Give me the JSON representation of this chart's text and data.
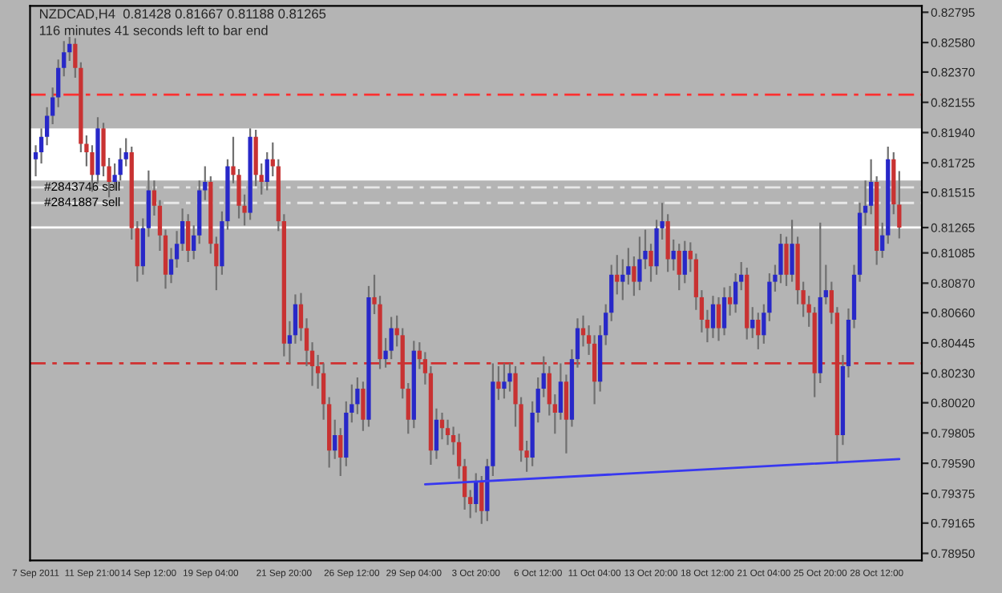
{
  "chart_data": {
    "type": "candlestick",
    "title": "NZDCAD,H4  0.81428 0.81667 0.81188 0.81265",
    "subtitle": "116 minutes 41 seconds left to bar end",
    "categories": [
      "7 Sep 2011",
      null,
      null,
      null,
      null,
      null,
      null,
      null,
      null,
      null,
      "11 Sep 21:00",
      null,
      null,
      null,
      null,
      null,
      null,
      null,
      null,
      null,
      "14 Sep 12:00",
      null,
      null,
      null,
      null,
      null,
      null,
      null,
      null,
      null,
      null,
      "19 Sep 04:00",
      null,
      null,
      null,
      null,
      null,
      null,
      null,
      null,
      null,
      null,
      null,
      null,
      "21 Sep 20:00",
      null,
      null,
      null,
      null,
      null,
      null,
      null,
      null,
      null,
      null,
      null,
      "26 Sep 12:00",
      null,
      null,
      null,
      null,
      null,
      null,
      null,
      null,
      null,
      null,
      "29 Sep 04:00",
      null,
      null,
      null,
      null,
      null,
      null,
      null,
      null,
      null,
      null,
      "3 Oct 20:00",
      null,
      null,
      null,
      null,
      null,
      null,
      null,
      null,
      null,
      null,
      "6 Oct 12:00",
      null,
      null,
      null,
      null,
      null,
      null,
      null,
      null,
      null,
      "11 Oct 04:00",
      null,
      null,
      null,
      null,
      null,
      null,
      null,
      null,
      null,
      "13 Oct 20:00",
      null,
      null,
      null,
      null,
      null,
      null,
      null,
      null,
      null,
      "18 Oct 12:00",
      null,
      null,
      null,
      null,
      null,
      null,
      null,
      null,
      null,
      "21 Oct 04:00",
      null,
      null,
      null,
      null,
      null,
      null,
      null,
      null,
      null,
      "25 Oct 20:00",
      null,
      null,
      null,
      null,
      null,
      null,
      null,
      null,
      null,
      "28 Oct 12:00",
      null,
      null,
      null,
      null
    ],
    "ohlc": [
      [
        0.8175,
        0.8185,
        0.8163,
        0.818
      ],
      [
        0.818,
        0.8197,
        0.8172,
        0.8191
      ],
      [
        0.8191,
        0.8212,
        0.8185,
        0.8206
      ],
      [
        0.8206,
        0.8226,
        0.82,
        0.8219
      ],
      [
        0.8219,
        0.8246,
        0.8212,
        0.824
      ],
      [
        0.824,
        0.8259,
        0.8234,
        0.8251
      ],
      [
        0.8251,
        0.8262,
        0.8245,
        0.8257
      ],
      [
        0.8257,
        0.8261,
        0.8233,
        0.824
      ],
      [
        0.824,
        0.8244,
        0.818,
        0.8186
      ],
      [
        0.8186,
        0.8192,
        0.817,
        0.818
      ],
      [
        0.818,
        0.8185,
        0.8152,
        0.8164
      ],
      [
        0.8164,
        0.8205,
        0.8158,
        0.8197
      ],
      [
        0.8197,
        0.8201,
        0.8163,
        0.817
      ],
      [
        0.817,
        0.8176,
        0.8148,
        0.8159
      ],
      [
        0.8159,
        0.8172,
        0.8153,
        0.8164
      ],
      [
        0.8164,
        0.8183,
        0.816,
        0.8175
      ],
      [
        0.8175,
        0.819,
        0.817,
        0.818
      ],
      [
        0.818,
        0.8184,
        0.8118,
        0.8126
      ],
      [
        0.8126,
        0.8131,
        0.8088,
        0.8099
      ],
      [
        0.8099,
        0.8133,
        0.8093,
        0.8126
      ],
      [
        0.8126,
        0.8167,
        0.812,
        0.8153
      ],
      [
        0.8153,
        0.816,
        0.8135,
        0.8142
      ],
      [
        0.8142,
        0.8146,
        0.811,
        0.8121
      ],
      [
        0.8121,
        0.8125,
        0.8083,
        0.8093
      ],
      [
        0.8093,
        0.8112,
        0.8087,
        0.8104
      ],
      [
        0.8104,
        0.8124,
        0.8098,
        0.8115
      ],
      [
        0.8115,
        0.814,
        0.811,
        0.8131
      ],
      [
        0.8131,
        0.8136,
        0.8102,
        0.811
      ],
      [
        0.811,
        0.8128,
        0.8104,
        0.8121
      ],
      [
        0.8121,
        0.816,
        0.8115,
        0.8153
      ],
      [
        0.8153,
        0.817,
        0.8146,
        0.8159
      ],
      [
        0.8159,
        0.8163,
        0.8108,
        0.8115
      ],
      [
        0.8115,
        0.812,
        0.8082,
        0.8099
      ],
      [
        0.8099,
        0.8138,
        0.8093,
        0.8131
      ],
      [
        0.8131,
        0.8175,
        0.8125,
        0.817
      ],
      [
        0.817,
        0.8191,
        0.8158,
        0.8164
      ],
      [
        0.8164,
        0.8168,
        0.8133,
        0.8142
      ],
      [
        0.8142,
        0.815,
        0.8128,
        0.8137
      ],
      [
        0.8137,
        0.8197,
        0.8132,
        0.8191
      ],
      [
        0.8191,
        0.8196,
        0.8156,
        0.8164
      ],
      [
        0.8164,
        0.8172,
        0.815,
        0.8159
      ],
      [
        0.8159,
        0.818,
        0.8153,
        0.8175
      ],
      [
        0.8175,
        0.8187,
        0.8163,
        0.817
      ],
      [
        0.817,
        0.8175,
        0.8124,
        0.8131
      ],
      [
        0.8131,
        0.8136,
        0.8035,
        0.8044
      ],
      [
        0.8044,
        0.806,
        0.803,
        0.805
      ],
      [
        0.805,
        0.8079,
        0.8044,
        0.8072
      ],
      [
        0.8072,
        0.808,
        0.8046,
        0.8055
      ],
      [
        0.8055,
        0.8062,
        0.8028,
        0.8039
      ],
      [
        0.8039,
        0.8045,
        0.8014,
        0.8028
      ],
      [
        0.8028,
        0.8036,
        0.8012,
        0.8023
      ],
      [
        0.8023,
        0.803,
        0.799,
        0.8001
      ],
      [
        0.8001,
        0.8006,
        0.7956,
        0.7968
      ],
      [
        0.7968,
        0.799,
        0.7962,
        0.7979
      ],
      [
        0.7979,
        0.7984,
        0.795,
        0.7963
      ],
      [
        0.7963,
        0.8003,
        0.7957,
        0.7995
      ],
      [
        0.7995,
        0.8015,
        0.7988,
        0.8001
      ],
      [
        0.8001,
        0.802,
        0.7994,
        0.8012
      ],
      [
        0.8012,
        0.8017,
        0.7982,
        0.799
      ],
      [
        0.799,
        0.8085,
        0.7985,
        0.8077
      ],
      [
        0.8077,
        0.8093,
        0.8065,
        0.8072
      ],
      [
        0.8072,
        0.8078,
        0.8026,
        0.8033
      ],
      [
        0.8033,
        0.8048,
        0.8027,
        0.8039
      ],
      [
        0.8039,
        0.8063,
        0.8033,
        0.8055
      ],
      [
        0.8055,
        0.8064,
        0.8042,
        0.805
      ],
      [
        0.805,
        0.8055,
        0.8005,
        0.8012
      ],
      [
        0.8012,
        0.8016,
        0.798,
        0.799
      ],
      [
        0.799,
        0.8046,
        0.7984,
        0.8039
      ],
      [
        0.8039,
        0.8045,
        0.8026,
        0.8033
      ],
      [
        0.8033,
        0.8038,
        0.8015,
        0.8023
      ],
      [
        0.8023,
        0.8028,
        0.7958,
        0.7968
      ],
      [
        0.7968,
        0.7998,
        0.7962,
        0.799
      ],
      [
        0.799,
        0.7995,
        0.7976,
        0.7984
      ],
      [
        0.7984,
        0.799,
        0.7972,
        0.7979
      ],
      [
        0.7979,
        0.7985,
        0.7965,
        0.7974
      ],
      [
        0.7974,
        0.798,
        0.7948,
        0.7957
      ],
      [
        0.7957,
        0.7962,
        0.7926,
        0.7935
      ],
      [
        0.7935,
        0.794,
        0.792,
        0.793
      ],
      [
        0.793,
        0.7952,
        0.7924,
        0.7946
      ],
      [
        0.7946,
        0.795,
        0.7916,
        0.7925
      ],
      [
        0.7925,
        0.7962,
        0.7918,
        0.7957
      ],
      [
        0.7957,
        0.803,
        0.795,
        0.8017
      ],
      [
        0.8017,
        0.8028,
        0.8004,
        0.8012
      ],
      [
        0.8012,
        0.803,
        0.8005,
        0.8017
      ],
      [
        0.8017,
        0.803,
        0.801,
        0.8023
      ],
      [
        0.8023,
        0.8028,
        0.7985,
        0.8001
      ],
      [
        0.8001,
        0.8006,
        0.796,
        0.7968
      ],
      [
        0.7968,
        0.7975,
        0.7953,
        0.7963
      ],
      [
        0.7963,
        0.8003,
        0.7957,
        0.7995
      ],
      [
        0.7995,
        0.802,
        0.7988,
        0.8012
      ],
      [
        0.8012,
        0.8035,
        0.8006,
        0.8023
      ],
      [
        0.8023,
        0.8028,
        0.7993,
        0.8001
      ],
      [
        0.8001,
        0.8008,
        0.798,
        0.7995
      ],
      [
        0.7995,
        0.803,
        0.799,
        0.8017
      ],
      [
        0.8017,
        0.8022,
        0.7966,
        0.799
      ],
      [
        0.799,
        0.804,
        0.7985,
        0.8033
      ],
      [
        0.8033,
        0.8062,
        0.8027,
        0.8055
      ],
      [
        0.8055,
        0.8064,
        0.8042,
        0.805
      ],
      [
        0.805,
        0.8057,
        0.8036,
        0.8044
      ],
      [
        0.8044,
        0.805,
        0.8001,
        0.8017
      ],
      [
        0.8017,
        0.8057,
        0.801,
        0.805
      ],
      [
        0.805,
        0.8072,
        0.8043,
        0.8066
      ],
      [
        0.8066,
        0.81,
        0.806,
        0.8093
      ],
      [
        0.8093,
        0.8107,
        0.8079,
        0.8088
      ],
      [
        0.8088,
        0.8104,
        0.8075,
        0.8093
      ],
      [
        0.8093,
        0.8112,
        0.8086,
        0.8099
      ],
      [
        0.8099,
        0.8106,
        0.8078,
        0.8088
      ],
      [
        0.8088,
        0.812,
        0.8082,
        0.8104
      ],
      [
        0.8104,
        0.8125,
        0.8097,
        0.811
      ],
      [
        0.811,
        0.8115,
        0.8088,
        0.8099
      ],
      [
        0.8099,
        0.8132,
        0.8093,
        0.8126
      ],
      [
        0.8126,
        0.8144,
        0.8118,
        0.8131
      ],
      [
        0.8131,
        0.8136,
        0.8095,
        0.8104
      ],
      [
        0.8104,
        0.8118,
        0.8096,
        0.811
      ],
      [
        0.811,
        0.8115,
        0.8082,
        0.8093
      ],
      [
        0.8093,
        0.8117,
        0.8087,
        0.811
      ],
      [
        0.811,
        0.8116,
        0.8095,
        0.8104
      ],
      [
        0.8104,
        0.8108,
        0.8068,
        0.8077
      ],
      [
        0.8077,
        0.8082,
        0.8052,
        0.8061
      ],
      [
        0.8061,
        0.8068,
        0.8045,
        0.8055
      ],
      [
        0.8055,
        0.8078,
        0.8048,
        0.8072
      ],
      [
        0.8072,
        0.8077,
        0.8046,
        0.8055
      ],
      [
        0.8055,
        0.8084,
        0.805,
        0.8077
      ],
      [
        0.8077,
        0.8085,
        0.8064,
        0.8072
      ],
      [
        0.8072,
        0.8094,
        0.8066,
        0.8088
      ],
      [
        0.8088,
        0.8102,
        0.8082,
        0.8093
      ],
      [
        0.8093,
        0.8098,
        0.8047,
        0.8055
      ],
      [
        0.8055,
        0.807,
        0.8048,
        0.8061
      ],
      [
        0.8061,
        0.8066,
        0.804,
        0.805
      ],
      [
        0.805,
        0.8072,
        0.8044,
        0.8066
      ],
      [
        0.8066,
        0.8094,
        0.806,
        0.8088
      ],
      [
        0.8088,
        0.81,
        0.8081,
        0.8093
      ],
      [
        0.8093,
        0.8122,
        0.8087,
        0.8115
      ],
      [
        0.8115,
        0.812,
        0.8085,
        0.8093
      ],
      [
        0.8093,
        0.8132,
        0.8088,
        0.8115
      ],
      [
        0.8115,
        0.812,
        0.8072,
        0.8082
      ],
      [
        0.8082,
        0.8088,
        0.8063,
        0.8072
      ],
      [
        0.8072,
        0.8078,
        0.8056,
        0.8066
      ],
      [
        0.8066,
        0.807,
        0.8006,
        0.8023
      ],
      [
        0.8023,
        0.813,
        0.8016,
        0.8077
      ],
      [
        0.8077,
        0.81,
        0.8072,
        0.8082
      ],
      [
        0.8082,
        0.8088,
        0.8058,
        0.8066
      ],
      [
        0.8066,
        0.807,
        0.7959,
        0.7979
      ],
      [
        0.7979,
        0.8036,
        0.7972,
        0.8028
      ],
      [
        0.8028,
        0.8069,
        0.802,
        0.8061
      ],
      [
        0.8061,
        0.81,
        0.8055,
        0.8093
      ],
      [
        0.8093,
        0.8144,
        0.8088,
        0.8137
      ],
      [
        0.8137,
        0.816,
        0.8128,
        0.8142
      ],
      [
        0.8142,
        0.8175,
        0.8136,
        0.8159
      ],
      [
        0.8159,
        0.8163,
        0.81,
        0.811
      ],
      [
        0.811,
        0.813,
        0.8105,
        0.8121
      ],
      [
        0.8121,
        0.8184,
        0.8115,
        0.8175
      ],
      [
        0.8175,
        0.818,
        0.8136,
        0.8143
      ],
      [
        0.81428,
        0.81667,
        0.81188,
        0.81265
      ]
    ],
    "colors": [
      "#2828c8",
      "#2828c8",
      "#2828c8",
      "#2828c8",
      "#2828c8",
      "#2828c8",
      "#2828c8",
      "#c83232",
      "#c83232",
      "#c83232",
      "#c83232",
      "#2828c8",
      "#c83232",
      "#c83232",
      "#2828c8",
      "#2828c8",
      "#2828c8",
      "#c83232",
      "#c83232",
      "#2828c8",
      "#2828c8",
      "#c83232",
      "#c83232",
      "#c83232",
      "#2828c8",
      "#2828c8",
      "#2828c8",
      "#c83232",
      "#2828c8",
      "#2828c8",
      "#2828c8",
      "#c83232",
      "#c83232",
      "#2828c8",
      "#2828c8",
      "#c83232",
      "#c83232",
      "#c83232",
      "#2828c8",
      "#c83232",
      "#c83232",
      "#2828c8",
      "#c83232",
      "#c83232",
      "#c83232",
      "#2828c8",
      "#2828c8",
      "#c83232",
      "#c83232",
      "#c83232",
      "#c83232",
      "#c83232",
      "#c83232",
      "#2828c8",
      "#c83232",
      "#2828c8",
      "#2828c8",
      "#2828c8",
      "#c83232",
      "#2828c8",
      "#c83232",
      "#c83232",
      "#2828c8",
      "#2828c8",
      "#c83232",
      "#c83232",
      "#c83232",
      "#2828c8",
      "#c83232",
      "#c83232",
      "#c83232",
      "#2828c8",
      "#c83232",
      "#c83232",
      "#c83232",
      "#c83232",
      "#c83232",
      "#c83232",
      "#2828c8",
      "#c83232",
      "#2828c8",
      "#2828c8",
      "#c83232",
      "#2828c8",
      "#2828c8",
      "#c83232",
      "#c83232",
      "#c83232",
      "#2828c8",
      "#2828c8",
      "#2828c8",
      "#c83232",
      "#c83232",
      "#2828c8",
      "#c83232",
      "#2828c8",
      "#2828c8",
      "#c83232",
      "#c83232",
      "#c83232",
      "#2828c8",
      "#2828c8",
      "#2828c8",
      "#c83232",
      "#2828c8",
      "#2828c8",
      "#c83232",
      "#2828c8",
      "#2828c8",
      "#c83232",
      "#2828c8",
      "#2828c8",
      "#c83232",
      "#2828c8",
      "#c83232",
      "#2828c8",
      "#c83232",
      "#c83232",
      "#c83232",
      "#c83232",
      "#2828c8",
      "#c83232",
      "#2828c8",
      "#c83232",
      "#2828c8",
      "#2828c8",
      "#c83232",
      "#2828c8",
      "#c83232",
      "#2828c8",
      "#2828c8",
      "#2828c8",
      "#2828c8",
      "#c83232",
      "#2828c8",
      "#c83232",
      "#c83232",
      "#c83232",
      "#c83232",
      "#2828c8",
      "#2828c8",
      "#c83232",
      "#c83232",
      "#2828c8",
      "#2828c8",
      "#2828c8",
      "#2828c8",
      "#2828c8",
      "#2828c8",
      "#c83232",
      "#2828c8",
      "#2828c8",
      "#c83232",
      "#c83232"
    ],
    "series": [
      {
        "type": "line",
        "color": "#3838f0",
        "values": [
          null,
          null,
          null,
          null,
          null,
          null,
          null,
          null,
          null,
          null,
          null,
          null,
          null,
          null,
          null,
          null,
          null,
          null,
          null,
          null,
          null,
          null,
          null,
          null,
          null,
          null,
          null,
          null,
          null,
          null,
          null,
          null,
          null,
          null,
          null,
          null,
          null,
          null,
          null,
          null,
          null,
          null,
          null,
          null,
          null,
          null,
          null,
          null,
          null,
          null,
          null,
          null,
          null,
          null,
          null,
          null,
          null,
          null,
          null,
          null,
          null,
          null,
          null,
          null,
          null,
          null,
          null,
          null,
          null,
          0.7944,
          null,
          null,
          null,
          null,
          null,
          null,
          null,
          null,
          null,
          null,
          null,
          null,
          null,
          null,
          null,
          null,
          null,
          null,
          null,
          null,
          null,
          null,
          null,
          null,
          null,
          null,
          null,
          null,
          null,
          null,
          null,
          null,
          null,
          null,
          null,
          null,
          null,
          null,
          null,
          null,
          null,
          null,
          null,
          null,
          null,
          null,
          null,
          null,
          null,
          null,
          null,
          null,
          null,
          null,
          null,
          null,
          null,
          null,
          null,
          null,
          null,
          null,
          null,
          null,
          null,
          null,
          null,
          null,
          null,
          null,
          null,
          null,
          null,
          null,
          null,
          null,
          null,
          null,
          null,
          null,
          null,
          null,
          null,
          0.7962
        ]
      }
    ],
    "ylim": [
      0.789,
      0.8284
    ],
    "yticks": [
      {
        "value": 0.82795,
        "label": "0.82795"
      },
      {
        "value": 0.8258,
        "label": "0.82580"
      },
      {
        "value": 0.8237,
        "label": "0.82370"
      },
      {
        "value": 0.82155,
        "label": "0.82155"
      },
      {
        "value": 0.8194,
        "label": "0.81940"
      },
      {
        "value": 0.81725,
        "label": "0.81725"
      },
      {
        "value": 0.81515,
        "label": "0.81515"
      },
      {
        "value": 0.81265,
        "label": "0.81265"
      },
      {
        "value": 0.81085,
        "label": "0.81085"
      },
      {
        "value": 0.8087,
        "label": "0.80870"
      },
      {
        "value": 0.8066,
        "label": "0.80660"
      },
      {
        "value": 0.80445,
        "label": "0.80445"
      },
      {
        "value": 0.8023,
        "label": "0.80230"
      },
      {
        "value": 0.8002,
        "label": "0.80020"
      },
      {
        "value": 0.79805,
        "label": "0.79805"
      },
      {
        "value": 0.7959,
        "label": "0.79590"
      },
      {
        "value": 0.79375,
        "label": "0.79375"
      },
      {
        "value": 0.79165,
        "label": "0.79165"
      },
      {
        "value": 0.7895,
        "label": "0.78950"
      }
    ],
    "bands": [
      {
        "axis": "y",
        "from": 0.816,
        "to": 0.8197,
        "color": "#ffffff"
      }
    ],
    "ref_lines": [
      {
        "axis": "y",
        "value": 0.8221,
        "color": "#ff3030",
        "line_style": "dashed"
      },
      {
        "axis": "y",
        "value": 0.803,
        "color": "#d03030",
        "line_style": "dashed"
      },
      {
        "axis": "y",
        "value": 0.8155,
        "label": "#2843746 sell",
        "color": "#e8e8e8",
        "line_style": "dashed"
      },
      {
        "axis": "y",
        "value": 0.8144,
        "label": "#2841887 sell",
        "color": "#e8e8e8",
        "line_style": "dashed"
      },
      {
        "axis": "y",
        "value": 0.81265,
        "color": "#ffffff",
        "line_style": "solid"
      }
    ],
    "grid": false,
    "legend": false
  }
}
